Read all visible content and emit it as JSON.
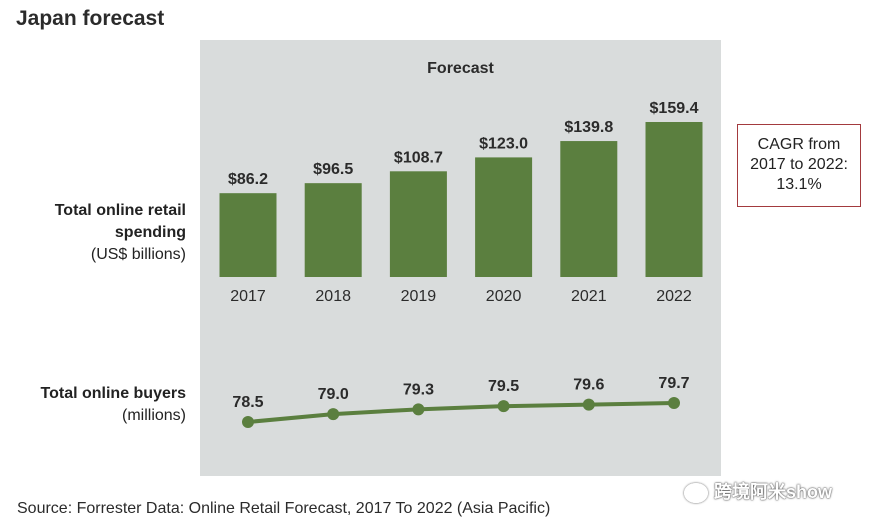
{
  "header": {
    "title": "Japan forecast"
  },
  "panel": {
    "forecast_label": "Forecast"
  },
  "rows": {
    "spending": {
      "line1": "Total online retail",
      "line2": "spending",
      "unit": "(US$ billions)"
    },
    "buyers": {
      "line1": "Total online buyers",
      "unit": "(millions)"
    }
  },
  "cagr": {
    "line1": "CAGR from",
    "line2": "2017 to 2022:",
    "line3": "13.1%"
  },
  "footer": {
    "source": "Source: Forrester Data: Online Retail Forecast, 2017 To 2022 (Asia Pacific)"
  },
  "watermark": {
    "text": "跨境阿米show"
  },
  "colors": {
    "bar": "#5b7f3f",
    "line": "#5b7f3f",
    "panel": "#d9dcdc",
    "cagr_border": "#a33a3e"
  },
  "chart_data": [
    {
      "type": "bar",
      "categories": [
        "2017",
        "2018",
        "2019",
        "2020",
        "2021",
        "2022"
      ],
      "values": [
        86.2,
        96.5,
        108.7,
        123.0,
        139.8,
        159.4
      ],
      "value_labels": [
        "$86.2",
        "$96.5",
        "$108.7",
        "$123.0",
        "$139.8",
        "$159.4"
      ],
      "ylim": [
        0,
        159.4
      ]
    },
    {
      "type": "line",
      "categories": [
        "2017",
        "2018",
        "2019",
        "2020",
        "2021",
        "2022"
      ],
      "values": [
        78.5,
        79.0,
        79.3,
        79.5,
        79.6,
        79.7
      ],
      "value_labels": [
        "78.5",
        "79.0",
        "79.3",
        "79.5",
        "79.6",
        "79.7"
      ]
    }
  ]
}
